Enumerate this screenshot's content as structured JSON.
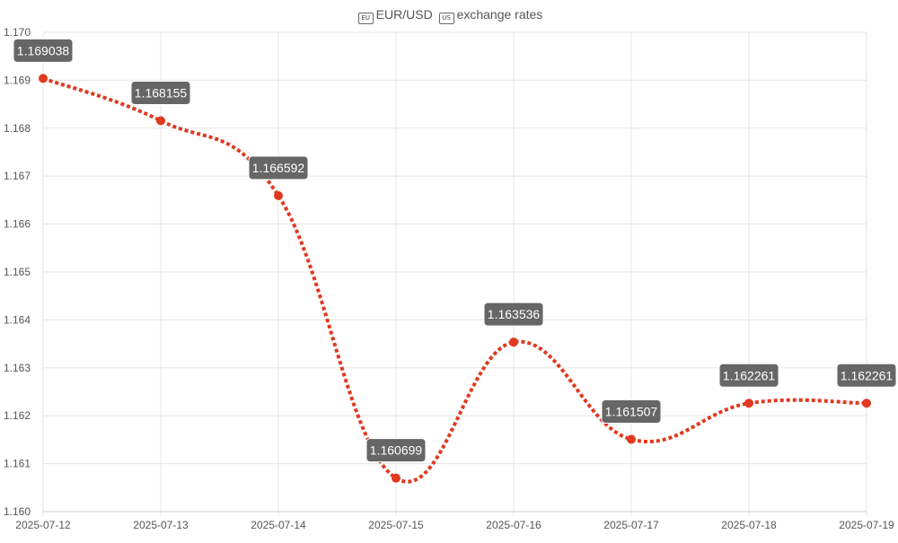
{
  "title": {
    "flag1": "EU",
    "pair": "EUR/USD",
    "flag2": "US",
    "suffix": "exchange rates"
  },
  "colors": {
    "line": "#e0391f",
    "point": "#e0391f",
    "grid": "#e5e5e5",
    "label_bg": "#666666",
    "label_text": "#ffffff",
    "tick_text": "#555555"
  },
  "chart_data": {
    "type": "line",
    "title": "EUR/USD exchange rates",
    "xlabel": "",
    "ylabel": "",
    "grid": true,
    "ylim": [
      1.16,
      1.17
    ],
    "y_ticks": [
      "1.160",
      "1.161",
      "1.162",
      "1.163",
      "1.164",
      "1.165",
      "1.166",
      "1.167",
      "1.168",
      "1.169",
      "1.170"
    ],
    "categories": [
      "2025-07-12",
      "2025-07-13",
      "2025-07-14",
      "2025-07-15",
      "2025-07-16",
      "2025-07-17",
      "2025-07-18",
      "2025-07-19"
    ],
    "series": [
      {
        "values": [
          1.169038,
          1.168155,
          1.166592,
          1.160699,
          1.163536,
          1.161507,
          1.162261,
          1.162261
        ],
        "data_labels": [
          "1.169038",
          "1.168155",
          "1.166592",
          "1.160699",
          "1.163536",
          "1.161507",
          "1.162261",
          "1.162261"
        ],
        "line_style": "dotted",
        "curve": "smooth"
      }
    ]
  }
}
